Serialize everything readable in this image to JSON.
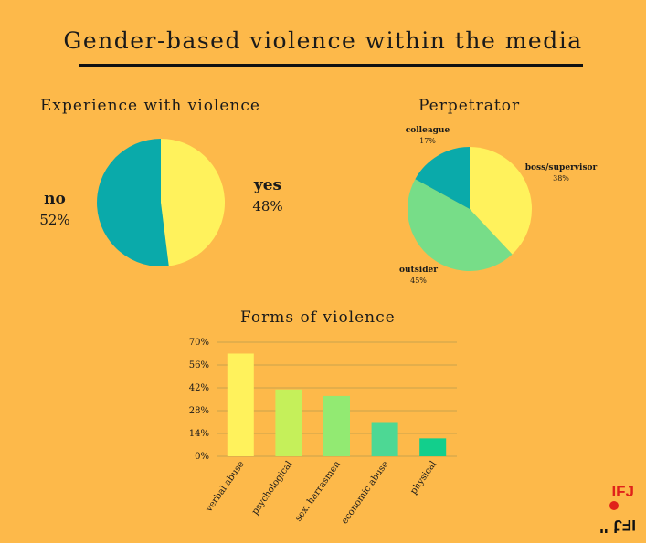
{
  "title": "Gender-based violence within the media",
  "experience": {
    "title": "Experience with violence",
    "no_label": "no",
    "no_value": "52%",
    "yes_label": "yes",
    "yes_value": "48%"
  },
  "perpetrator": {
    "title": "Perpetrator",
    "colleague_label": "colleague",
    "colleague_value": "17%",
    "boss_label": "boss/supervisor",
    "boss_value": "38%",
    "outsider_label": "outsider",
    "outsider_value": "45%"
  },
  "forms": {
    "title": "Forms of violence"
  },
  "colors": {
    "background": "#FDB94A",
    "teal": "#0AAAAA",
    "yellow": "#FFF25C",
    "green": "#77DD88",
    "bars": [
      "#FFF25C",
      "#C5F05A",
      "#92EA72",
      "#4DD894",
      "#12CF8C"
    ]
  },
  "logo": {
    "text_top": "IFJ",
    "text_bottom": "FIP"
  },
  "chart_data": [
    {
      "type": "pie",
      "title": "Experience with violence",
      "categories": [
        "no",
        "yes"
      ],
      "values": [
        52,
        48
      ]
    },
    {
      "type": "pie",
      "title": "Perpetrator",
      "categories": [
        "boss/supervisor",
        "outsider",
        "colleague"
      ],
      "values": [
        38,
        45,
        17
      ]
    },
    {
      "type": "bar",
      "title": "Forms of violence",
      "categories": [
        "verbal abuse",
        "psychological",
        "sex. harrasmen",
        "economic abuse",
        "physical"
      ],
      "values": [
        63,
        41,
        37,
        21,
        11
      ],
      "yticks": [
        "0%",
        "14%",
        "28%",
        "42%",
        "56%",
        "70%"
      ],
      "ylim": [
        0,
        70
      ],
      "grid": true
    }
  ]
}
